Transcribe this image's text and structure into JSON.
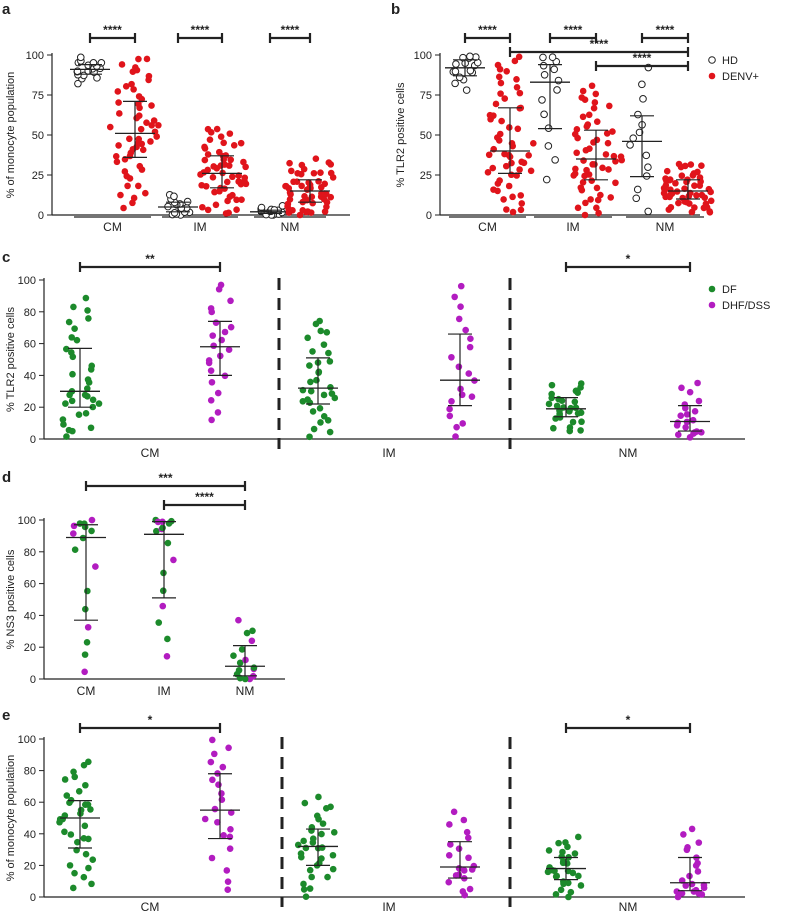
{
  "colors": {
    "hd_fill": "#ffffff",
    "hd_stroke": "#222222",
    "denv": "#e0141b",
    "df": "#1c8a2b",
    "dhf": "#b21cc0",
    "axis": "#222222"
  },
  "chart_data": [
    {
      "panel": "a",
      "type": "scatter",
      "ylabel": "% of monocyte population",
      "ylim": [
        0,
        100
      ],
      "yticks": [
        0,
        25,
        50,
        75,
        100
      ],
      "groups": [
        "CM",
        "IM",
        "NM"
      ],
      "series": [
        {
          "name": "HD",
          "color_key": "hd",
          "stats": [
            {
              "group": "CM",
              "median": 91,
              "q1": 88,
              "q3": 94,
              "n": 18
            },
            {
              "group": "IM",
              "median": 5,
              "q1": 2,
              "q3": 8,
              "n": 16
            },
            {
              "group": "NM",
              "median": 2,
              "q1": 1,
              "q3": 3,
              "n": 16
            }
          ]
        },
        {
          "name": "DENV+",
          "color_key": "denv",
          "stats": [
            {
              "group": "CM",
              "median": 51,
              "q1": 36,
              "q3": 71,
              "n": 55
            },
            {
              "group": "IM",
              "median": 26,
              "q1": 17,
              "q3": 37,
              "n": 55
            },
            {
              "group": "NM",
              "median": 15,
              "q1": 8,
              "q3": 22,
              "n": 55
            }
          ]
        }
      ],
      "significance": [
        {
          "label": "****",
          "from": [
            0,
            0
          ],
          "to": [
            0,
            1
          ],
          "level": 0
        },
        {
          "label": "****",
          "from": [
            1,
            0
          ],
          "to": [
            1,
            1
          ],
          "level": 0
        },
        {
          "label": "****",
          "from": [
            2,
            0
          ],
          "to": [
            2,
            1
          ],
          "level": 0
        }
      ],
      "group_underline": true
    },
    {
      "panel": "b",
      "type": "scatter",
      "ylabel": "% TLR2 positive cells",
      "ylim": [
        0,
        100
      ],
      "yticks": [
        0,
        25,
        50,
        75,
        100
      ],
      "groups": [
        "CM",
        "IM",
        "NM"
      ],
      "legend": [
        {
          "label": "HD",
          "color_key": "hd"
        },
        {
          "label": "DENV+",
          "color_key": "denv"
        }
      ],
      "series": [
        {
          "name": "HD",
          "color_key": "hd",
          "stats": [
            {
              "group": "CM",
              "median": 92,
              "q1": 87,
              "q3": 97,
              "n": 16
            },
            {
              "group": "IM",
              "median": 83,
              "q1": 54,
              "q3": 94,
              "n": 14
            },
            {
              "group": "NM",
              "median": 46,
              "q1": 24,
              "q3": 62,
              "n": 14
            }
          ]
        },
        {
          "name": "DENV+",
          "color_key": "denv",
          "stats": [
            {
              "group": "CM",
              "median": 40,
              "q1": 26,
              "q3": 67,
              "n": 55
            },
            {
              "group": "IM",
              "median": 35,
              "q1": 22,
              "q3": 53,
              "n": 55
            },
            {
              "group": "NM",
              "median": 15,
              "q1": 10,
              "q3": 22,
              "n": 55
            }
          ]
        }
      ],
      "significance": [
        {
          "label": "****",
          "from": [
            0,
            0
          ],
          "to": [
            0,
            1
          ],
          "level": 0
        },
        {
          "label": "****",
          "from": [
            1,
            0
          ],
          "to": [
            1,
            1
          ],
          "level": 0
        },
        {
          "label": "****",
          "from": [
            2,
            0
          ],
          "to": [
            2,
            1
          ],
          "level": 0
        },
        {
          "label": "****",
          "from": [
            0,
            1
          ],
          "to": [
            2,
            1
          ],
          "level": 1
        },
        {
          "label": "****",
          "from": [
            1,
            1
          ],
          "to": [
            2,
            1
          ],
          "level": 2
        }
      ],
      "group_underline": true
    },
    {
      "panel": "c",
      "type": "scatter",
      "ylabel": "% TLR2 positive cells",
      "ylim": [
        0,
        100
      ],
      "yticks": [
        0,
        20,
        40,
        60,
        80,
        100
      ],
      "groups": [
        "CM",
        "IM",
        "NM"
      ],
      "legend": [
        {
          "label": "DF",
          "color_key": "df"
        },
        {
          "label": "DHF/DSS",
          "color_key": "dhf"
        }
      ],
      "series": [
        {
          "name": "DF",
          "color_key": "df",
          "stats": [
            {
              "group": "CM",
              "median": 30,
              "q1": 20,
              "q3": 57,
              "n": 34
            },
            {
              "group": "IM",
              "median": 32,
              "q1": 22,
              "q3": 51,
              "n": 32
            },
            {
              "group": "NM",
              "median": 19,
              "q1": 14,
              "q3": 26,
              "n": 30
            }
          ]
        },
        {
          "name": "DHF/DSS",
          "color_key": "dhf",
          "stats": [
            {
              "group": "CM",
              "median": 58,
              "q1": 40,
              "q3": 74,
              "n": 22
            },
            {
              "group": "IM",
              "median": 37,
              "q1": 21,
              "q3": 66,
              "n": 20
            },
            {
              "group": "NM",
              "median": 11,
              "q1": 5,
              "q3": 21,
              "n": 20
            }
          ]
        }
      ],
      "significance": [
        {
          "label": "**",
          "from": [
            0,
            0
          ],
          "to": [
            0,
            1
          ],
          "level": 0
        },
        {
          "label": "*",
          "from": [
            2,
            0
          ],
          "to": [
            2,
            1
          ],
          "level": 0
        }
      ],
      "dashed_separators": true
    },
    {
      "panel": "d",
      "type": "scatter",
      "ylabel": "% NS3 positive cells",
      "ylim": [
        0,
        100
      ],
      "yticks": [
        0,
        20,
        40,
        60,
        80,
        100
      ],
      "groups": [
        "CM",
        "IM",
        "NM"
      ],
      "series": [
        {
          "name": "DF",
          "color_key": "df",
          "stats": [
            {
              "group": "CM",
              "median": 89,
              "q1": 37,
              "q3": 97,
              "n": 16
            },
            {
              "group": "IM",
              "median": 91,
              "q1": 51,
              "q3": 99,
              "n": 16
            },
            {
              "group": "NM",
              "median": 8,
              "q1": 2,
              "q3": 21,
              "n": 16
            }
          ]
        }
      ],
      "significance": [
        {
          "label": "***",
          "from": [
            0,
            0
          ],
          "to": [
            2,
            0
          ],
          "level": 1
        },
        {
          "label": "****",
          "from": [
            1,
            0
          ],
          "to": [
            2,
            0
          ],
          "level": 0
        }
      ]
    },
    {
      "panel": "e",
      "type": "scatter",
      "ylabel": "% of monocyte population",
      "ylim": [
        0,
        100
      ],
      "yticks": [
        0,
        20,
        40,
        60,
        80,
        100
      ],
      "groups": [
        "CM",
        "IM",
        "NM"
      ],
      "series": [
        {
          "name": "DF",
          "color_key": "df",
          "stats": [
            {
              "group": "CM",
              "median": 50,
              "q1": 31,
              "q3": 61,
              "n": 34
            },
            {
              "group": "IM",
              "median": 32,
              "q1": 20,
              "q3": 43,
              "n": 32
            },
            {
              "group": "NM",
              "median": 18,
              "q1": 11,
              "q3": 25,
              "n": 30
            }
          ]
        },
        {
          "name": "DHF/DSS",
          "color_key": "dhf",
          "stats": [
            {
              "group": "CM",
              "median": 55,
              "q1": 37,
              "q3": 78,
              "n": 22
            },
            {
              "group": "IM",
              "median": 19,
              "q1": 12,
              "q3": 35,
              "n": 20
            },
            {
              "group": "NM",
              "median": 9,
              "q1": 4,
              "q3": 25,
              "n": 22
            }
          ]
        }
      ],
      "significance": [
        {
          "label": "*",
          "from": [
            0,
            0
          ],
          "to": [
            0,
            1
          ],
          "level": 0
        },
        {
          "label": "*",
          "from": [
            2,
            0
          ],
          "to": [
            2,
            1
          ],
          "level": 0
        }
      ],
      "dashed_separators": true
    }
  ]
}
